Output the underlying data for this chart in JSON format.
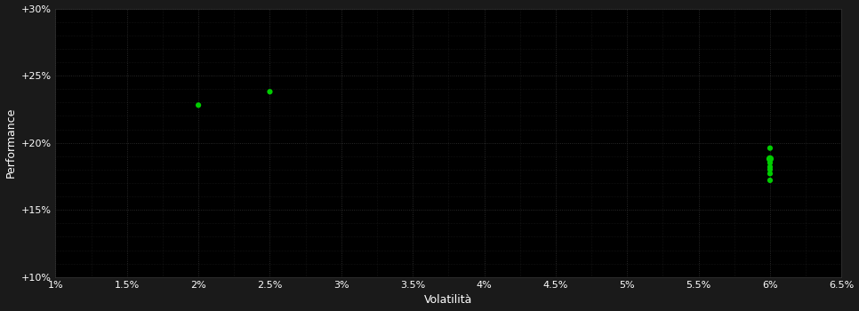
{
  "background_color": "#1a1a1a",
  "plot_bg_color": "#000000",
  "grid_color": "#333333",
  "point_color": "#00cc00",
  "xlabel": "Volatilità",
  "ylabel": "Performance",
  "xlim": [
    0.01,
    0.065
  ],
  "ylim": [
    0.1,
    0.3
  ],
  "xticks": [
    0.01,
    0.015,
    0.02,
    0.025,
    0.03,
    0.035,
    0.04,
    0.045,
    0.05,
    0.055,
    0.06,
    0.065
  ],
  "xtick_labels": [
    "1%",
    "1.5%",
    "2%",
    "2.5%",
    "3%",
    "3.5%",
    "4%",
    "4.5%",
    "5%",
    "5.5%",
    "6%",
    "6.5%"
  ],
  "yticks": [
    0.1,
    0.15,
    0.2,
    0.25,
    0.3
  ],
  "ytick_labels": [
    "+10%",
    "+15%",
    "+20%",
    "+25%",
    "+30%"
  ],
  "minor_xticks": [
    0.0125,
    0.0175,
    0.0225,
    0.0275,
    0.0325,
    0.0375,
    0.0425,
    0.0475,
    0.0525,
    0.0575,
    0.0625
  ],
  "minor_yticks": [
    0.11,
    0.12,
    0.13,
    0.14,
    0.16,
    0.17,
    0.18,
    0.19,
    0.21,
    0.22,
    0.23,
    0.24,
    0.26,
    0.27,
    0.28,
    0.29
  ],
  "points_x": [
    0.02,
    0.025,
    0.06,
    0.06,
    0.06,
    0.06,
    0.06,
    0.06,
    0.06
  ],
  "points_y": [
    0.228,
    0.238,
    0.196,
    0.188,
    0.185,
    0.182,
    0.18,
    0.177,
    0.172
  ],
  "point_sizes": [
    20,
    20,
    20,
    35,
    20,
    20,
    20,
    20,
    20
  ],
  "font_color": "#ffffff",
  "label_fontsize": 9,
  "tick_fontsize": 8
}
